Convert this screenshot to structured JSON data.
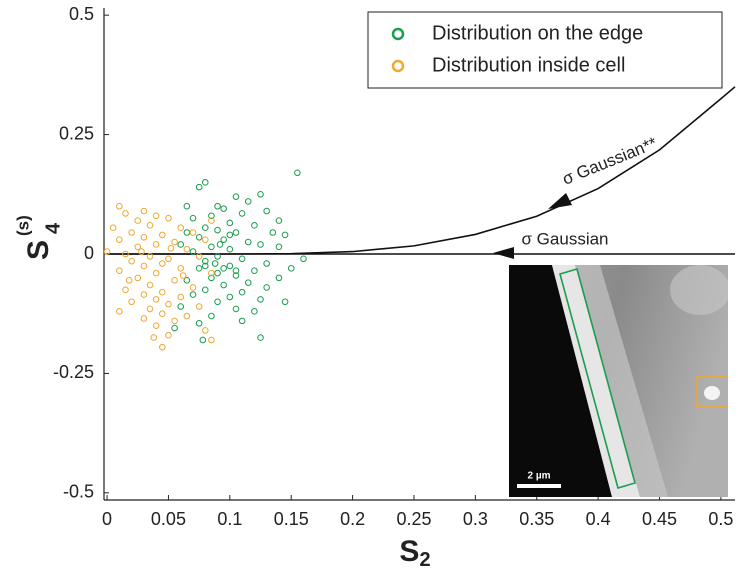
{
  "chart_data": {
    "type": "scatter",
    "x_label": {
      "main": "S",
      "sub": "2"
    },
    "y_label": {
      "main": "S",
      "sub": "4",
      "sup": "(s)"
    },
    "xlim": [
      -0.0025,
      0.5115
    ],
    "ylim": [
      -0.515,
      0.515
    ],
    "xticks": [
      0,
      0.05,
      0.1,
      0.15,
      0.2,
      0.25,
      0.3,
      0.35,
      0.4,
      0.45,
      0.5
    ],
    "yticks": [
      -0.5,
      -0.25,
      0,
      0.25,
      0.5
    ],
    "legend": "upper right",
    "series": [
      {
        "name": "Distribution on the edge",
        "color": "#1a9e50",
        "x": [
          0.155,
          0.08,
          0.075,
          0.125,
          0.105,
          0.065,
          0.09,
          0.115,
          0.095,
          0.13,
          0.07,
          0.085,
          0.11,
          0.14,
          0.1,
          0.08,
          0.12,
          0.09,
          0.065,
          0.105,
          0.135,
          0.145,
          0.075,
          0.095,
          0.115,
          0.06,
          0.085,
          0.125,
          0.14,
          0.1,
          0.07,
          0.09,
          0.11,
          0.16,
          0.08,
          0.13,
          0.1,
          0.15,
          0.075,
          0.12,
          0.09,
          0.105,
          0.085,
          0.14,
          0.065,
          0.115,
          0.095,
          0.13,
          0.08,
          0.11,
          0.07,
          0.1,
          0.125,
          0.09,
          0.145,
          0.06,
          0.105,
          0.12,
          0.085,
          0.11,
          0.075,
          0.055,
          0.125,
          0.078,
          0.1,
          0.088,
          0.095,
          0.105,
          0.08,
          0.092
        ],
        "values": [
          0.17,
          0.15,
          0.14,
          0.125,
          0.12,
          0.1,
          0.1,
          0.11,
          0.095,
          0.09,
          0.075,
          0.08,
          0.085,
          0.07,
          0.065,
          0.055,
          0.06,
          0.05,
          0.045,
          0.045,
          0.045,
          0.04,
          0.035,
          0.03,
          0.025,
          0.02,
          0.015,
          0.02,
          0.015,
          0.01,
          0.005,
          -0.005,
          -0.01,
          -0.01,
          -0.015,
          -0.02,
          -0.025,
          -0.03,
          -0.03,
          -0.035,
          -0.04,
          -0.045,
          -0.05,
          -0.05,
          -0.055,
          -0.06,
          -0.065,
          -0.07,
          -0.075,
          -0.08,
          -0.085,
          -0.09,
          -0.095,
          -0.1,
          -0.1,
          -0.11,
          -0.115,
          -0.12,
          -0.13,
          -0.14,
          -0.145,
          -0.155,
          -0.175,
          -0.18,
          0.04,
          -0.02,
          -0.03,
          -0.035,
          -0.025,
          0.02
        ]
      },
      {
        "name": "Distribution inside cell",
        "color": "#f0a830",
        "x": [
          0.01,
          0.03,
          0.015,
          0.04,
          0.025,
          0.05,
          0.085,
          0.035,
          0.005,
          0.06,
          0.02,
          0.045,
          0.07,
          0.03,
          0.01,
          0.055,
          0.08,
          0.04,
          0.025,
          0.065,
          0.0,
          0.015,
          0.035,
          0.05,
          0.075,
          0.02,
          0.045,
          0.03,
          0.06,
          0.01,
          0.04,
          0.085,
          0.025,
          0.055,
          0.035,
          0.07,
          0.015,
          0.045,
          0.03,
          0.06,
          0.04,
          0.02,
          0.05,
          0.075,
          0.035,
          0.01,
          0.045,
          0.065,
          0.03,
          0.055,
          0.04,
          0.08,
          0.05,
          0.085,
          0.045,
          0.038,
          0.028,
          0.052,
          0.018,
          0.062
        ],
        "values": [
          0.1,
          0.09,
          0.085,
          0.08,
          0.07,
          0.075,
          0.07,
          0.06,
          0.055,
          0.055,
          0.045,
          0.04,
          0.045,
          0.035,
          0.03,
          0.025,
          0.03,
          0.02,
          0.015,
          0.01,
          0.005,
          0.0,
          -0.005,
          -0.01,
          -0.005,
          -0.015,
          -0.02,
          -0.025,
          -0.03,
          -0.035,
          -0.04,
          -0.04,
          -0.05,
          -0.055,
          -0.065,
          -0.07,
          -0.075,
          -0.08,
          -0.085,
          -0.09,
          -0.095,
          -0.1,
          -0.105,
          -0.11,
          -0.115,
          -0.12,
          -0.125,
          -0.13,
          -0.135,
          -0.14,
          -0.15,
          -0.16,
          -0.17,
          -0.18,
          -0.195,
          -0.175,
          0.005,
          0.012,
          -0.055,
          -0.045
        ]
      }
    ],
    "curves": [
      {
        "x": [
          0,
          0.1,
          0.2,
          0.3,
          0.4,
          0.5,
          0.5115
        ],
        "values": [
          0,
          0,
          0,
          0,
          0,
          0,
          0
        ]
      },
      {
        "x": [
          0,
          0.1,
          0.15,
          0.2,
          0.25,
          0.3,
          0.35,
          0.4,
          0.45,
          0.5,
          0.5115
        ],
        "values": [
          0,
          0,
          0.0006,
          0.005,
          0.017,
          0.041,
          0.079,
          0.137,
          0.218,
          0.325,
          0.35
        ]
      }
    ],
    "annotations": [
      "σ  Gaussian**",
      "σ  Gaussian"
    ],
    "inset_scale_bar": "2 µm"
  }
}
